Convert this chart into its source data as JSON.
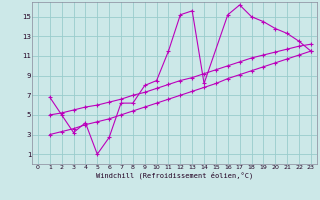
{
  "bg_color": "#cce8e8",
  "grid_color": "#99cccc",
  "line_color": "#bb00bb",
  "xlabel": "Windchill (Refroidissement éolien,°C)",
  "xlim": [
    -0.5,
    23.5
  ],
  "ylim": [
    0,
    16.5
  ],
  "xticks": [
    0,
    1,
    2,
    3,
    4,
    5,
    6,
    7,
    8,
    9,
    10,
    11,
    12,
    13,
    14,
    15,
    16,
    17,
    18,
    19,
    20,
    21,
    22,
    23
  ],
  "yticks": [
    1,
    3,
    5,
    7,
    9,
    11,
    13,
    15
  ],
  "series": [
    {
      "x": [
        1,
        2,
        3,
        4,
        5,
        6,
        7,
        8,
        9,
        10,
        11,
        12,
        13,
        14,
        16,
        17,
        18,
        19,
        20,
        21,
        22,
        23
      ],
      "y": [
        6.8,
        5.0,
        3.2,
        4.2,
        1.0,
        2.7,
        6.2,
        6.2,
        8.0,
        8.5,
        11.5,
        15.2,
        15.6,
        8.2,
        15.2,
        16.2,
        15.0,
        14.5,
        13.8,
        13.3,
        12.5,
        11.5
      ]
    },
    {
      "x": [
        1,
        2,
        3,
        4,
        5,
        6,
        7,
        8,
        9,
        10,
        11,
        12,
        13,
        14,
        15,
        16,
        17,
        18,
        19,
        20,
        21,
        22,
        23
      ],
      "y": [
        5.0,
        5.2,
        5.5,
        5.8,
        6.0,
        6.3,
        6.6,
        7.0,
        7.3,
        7.7,
        8.1,
        8.5,
        8.8,
        9.2,
        9.6,
        10.0,
        10.4,
        10.8,
        11.1,
        11.4,
        11.7,
        12.0,
        12.2
      ]
    },
    {
      "x": [
        1,
        2,
        3,
        4,
        5,
        6,
        7,
        8,
        9,
        10,
        11,
        12,
        13,
        14,
        15,
        16,
        17,
        18,
        19,
        20,
        21,
        22,
        23
      ],
      "y": [
        3.0,
        3.3,
        3.6,
        4.0,
        4.3,
        4.6,
        5.0,
        5.4,
        5.8,
        6.2,
        6.6,
        7.0,
        7.4,
        7.8,
        8.2,
        8.7,
        9.1,
        9.5,
        9.9,
        10.3,
        10.7,
        11.1,
        11.5
      ]
    }
  ],
  "figsize": [
    3.2,
    2.0
  ],
  "dpi": 100
}
